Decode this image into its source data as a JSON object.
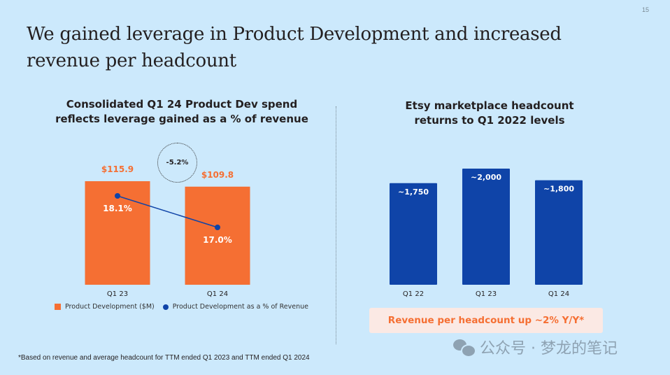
{
  "page_number": "15",
  "title": "We gained leverage in Product Development and increased revenue per headcount",
  "left_panel": {
    "title_line1": "Consolidated Q1 24 Product Dev spend",
    "title_line2": "reflects leverage gained as a % of revenue",
    "callout": "-5.2%",
    "legend": [
      "Product Development ($M)",
      "Product Development as a % of Revenue"
    ]
  },
  "right_panel": {
    "title_line1": "Etsy marketplace headcount",
    "title_line2": "returns to Q1 2022 levels",
    "highlight": "Revenue per headcount up ~2% Y/Y*"
  },
  "footnote": "*Based on revenue and average headcount for TTM ended Q1 2023 and TTM ended Q1 2024",
  "watermark": "公众号 · 梦龙的笔记",
  "colors": {
    "orange": "#f56f33",
    "blue": "#0f44a8",
    "background": "#cce9fc"
  },
  "chart_data": [
    {
      "type": "bar",
      "title": "Consolidated Q1 24 Product Dev spend reflects leverage gained as a % of revenue",
      "categories": [
        "Q1 23",
        "Q1 24"
      ],
      "series": [
        {
          "name": "Product Development ($M)",
          "type": "bar",
          "values": [
            115.9,
            109.8
          ],
          "labels": [
            "$115.9",
            "$109.8"
          ]
        },
        {
          "name": "Product Development as a % of Revenue",
          "type": "line",
          "values": [
            18.1,
            17.0
          ],
          "labels": [
            "18.1%",
            "17.0%"
          ]
        }
      ],
      "annotation": "-5.2%",
      "legend": "bottom",
      "grid": false
    },
    {
      "type": "bar",
      "title": "Etsy marketplace headcount returns to Q1 2022 levels",
      "categories": [
        "Q1 22",
        "Q1 23",
        "Q1 24"
      ],
      "values": [
        1750,
        2000,
        1800
      ],
      "labels": [
        "~1,750",
        "~2,000",
        "~1,800"
      ],
      "grid": false
    }
  ]
}
